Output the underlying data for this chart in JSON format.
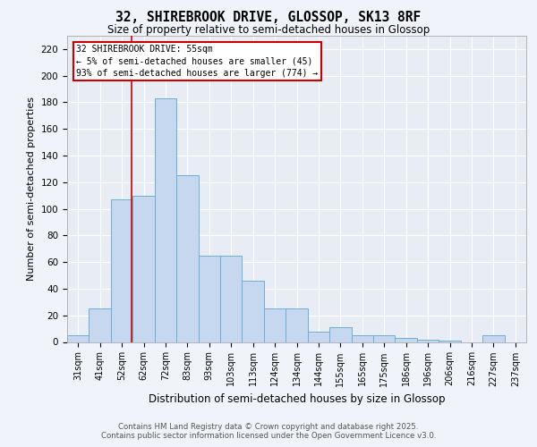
{
  "title1": "32, SHIREBROOK DRIVE, GLOSSOP, SK13 8RF",
  "title2": "Size of property relative to semi-detached houses in Glossop",
  "xlabel": "Distribution of semi-detached houses by size in Glossop",
  "ylabel": "Number of semi-detached properties",
  "bar_labels": [
    "31sqm",
    "41sqm",
    "52sqm",
    "62sqm",
    "72sqm",
    "83sqm",
    "93sqm",
    "103sqm",
    "113sqm",
    "124sqm",
    "134sqm",
    "144sqm",
    "155sqm",
    "165sqm",
    "175sqm",
    "186sqm",
    "196sqm",
    "206sqm",
    "216sqm",
    "227sqm",
    "237sqm"
  ],
  "bar_heights": [
    5,
    25,
    107,
    110,
    183,
    125,
    65,
    65,
    46,
    25,
    25,
    8,
    11,
    5,
    5,
    3,
    2,
    1,
    0,
    5,
    0
  ],
  "bar_color": "#C5D8EF",
  "bar_edge_color": "#6BAED6",
  "background_color": "#E8EDF5",
  "grid_color": "#FFFFFF",
  "ylim": [
    0,
    230
  ],
  "yticks": [
    0,
    20,
    40,
    60,
    80,
    100,
    120,
    140,
    160,
    180,
    200,
    220
  ],
  "annotation_title": "32 SHIREBROOK DRIVE: 55sqm",
  "annotation_line1": "← 5% of semi-detached houses are smaller (45)",
  "annotation_line2": "93% of semi-detached houses are larger (774) →",
  "annotation_box_color": "#FFFFFF",
  "annotation_box_edge": "#CC0000",
  "red_line_color": "#CC0000",
  "red_line_x": 2.45,
  "footer1": "Contains HM Land Registry data © Crown copyright and database right 2025.",
  "footer2": "Contains public sector information licensed under the Open Government Licence v3.0."
}
